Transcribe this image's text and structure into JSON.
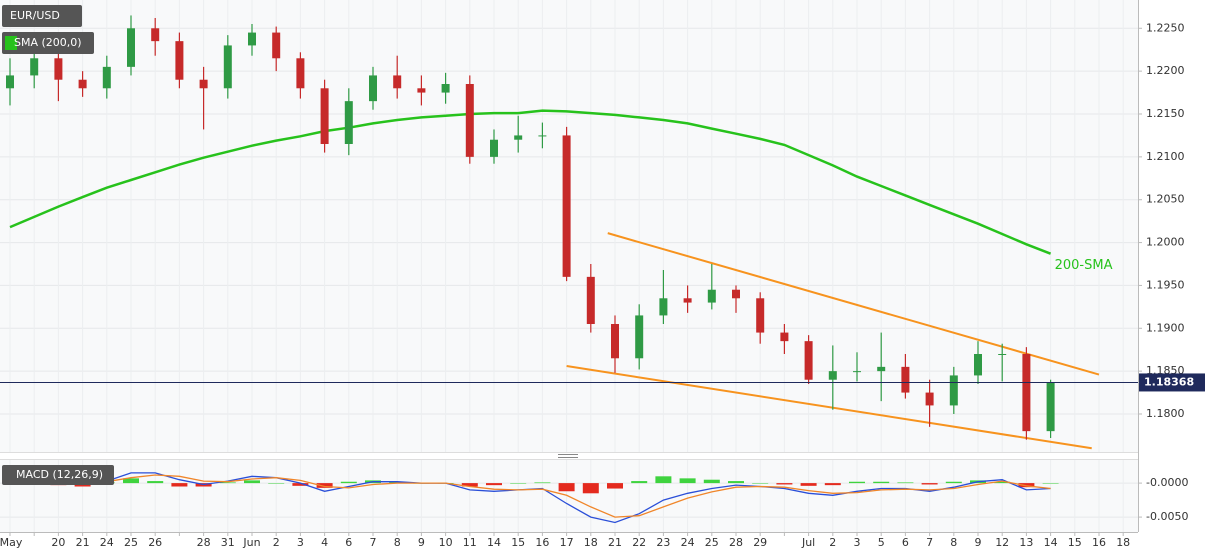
{
  "chart_data": {
    "type": "candlestick",
    "title": "EUR/USD",
    "categories": [
      "May",
      null,
      "20",
      "21",
      "24",
      "25",
      "26",
      null,
      "28",
      "31",
      "Jun",
      "2",
      "3",
      "4",
      "6",
      "7",
      "8",
      "9",
      "10",
      "11",
      "14",
      "15",
      "16",
      "17",
      "18",
      "21",
      "22",
      "23",
      "24",
      "25",
      "28",
      "29",
      null,
      "Jul",
      "2",
      "3",
      "5",
      "6",
      "7",
      "8",
      "9",
      "12",
      "13",
      "14",
      "15",
      "16",
      "18"
    ],
    "open": [
      1.218,
      1.2195,
      1.2215,
      1.219,
      1.218,
      1.2205,
      1.225,
      1.2235,
      1.219,
      1.218,
      1.223,
      1.2245,
      1.2215,
      1.218,
      1.2115,
      1.2165,
      1.2195,
      1.218,
      1.2175,
      1.2185,
      1.21,
      1.212,
      1.2125,
      1.2125,
      1.196,
      1.1905,
      1.1865,
      1.1915,
      1.1935,
      1.193,
      1.1945,
      1.1935,
      1.1895,
      1.1885,
      1.184,
      1.185,
      1.185,
      1.1855,
      1.1825,
      1.181,
      1.1845,
      1.187,
      1.187,
      1.178,
      null,
      null,
      null
    ],
    "high": [
      1.2215,
      1.2235,
      1.2228,
      1.22,
      1.2218,
      1.2265,
      1.2262,
      1.2245,
      1.2205,
      1.2242,
      1.2255,
      1.2252,
      1.2222,
      1.219,
      1.218,
      1.2205,
      1.2218,
      1.2195,
      1.2198,
      1.2195,
      1.2132,
      1.2148,
      1.214,
      1.2135,
      1.1975,
      1.1915,
      1.1928,
      1.1968,
      1.195,
      1.1975,
      1.195,
      1.1942,
      1.1905,
      1.1892,
      1.188,
      1.1872,
      1.1895,
      1.187,
      1.184,
      1.1855,
      1.1885,
      1.1882,
      1.1878,
      1.184,
      null,
      null,
      null
    ],
    "low": [
      1.216,
      1.218,
      1.2165,
      1.217,
      1.2168,
      1.2195,
      1.2218,
      1.218,
      1.2132,
      1.2168,
      1.2218,
      1.22,
      1.2168,
      1.2105,
      1.2102,
      1.2155,
      1.2168,
      1.216,
      1.2162,
      1.2092,
      1.2092,
      1.2105,
      1.211,
      1.1955,
      1.1895,
      1.1848,
      1.1852,
      1.1905,
      1.1918,
      1.1922,
      1.1918,
      1.1882,
      1.187,
      1.1835,
      1.1805,
      1.1838,
      1.1815,
      1.1818,
      1.1785,
      1.18,
      1.1835,
      1.1838,
      1.177,
      1.1772,
      null,
      null,
      null
    ],
    "close": [
      1.2195,
      1.2215,
      1.219,
      1.218,
      1.2205,
      1.225,
      1.2235,
      1.219,
      1.218,
      1.223,
      1.2245,
      1.2215,
      1.218,
      1.2115,
      1.2165,
      1.2195,
      1.218,
      1.2175,
      1.2185,
      1.21,
      1.212,
      1.2125,
      1.2125,
      1.196,
      1.1905,
      1.1865,
      1.1915,
      1.1935,
      1.193,
      1.1945,
      1.1935,
      1.1895,
      1.1885,
      1.184,
      1.185,
      1.185,
      1.1855,
      1.1825,
      1.181,
      1.1845,
      1.187,
      1.187,
      1.178,
      1.18368,
      null,
      null,
      null
    ],
    "up_color": "#2f9a45",
    "down_color": "#c62a2a",
    "ylim": [
      1.1758,
      1.2283
    ],
    "yticks": [
      {
        "value": 1.18,
        "label": "1.1800"
      },
      {
        "value": 1.185,
        "label": "1.1850"
      },
      {
        "value": 1.19,
        "label": "1.1900"
      },
      {
        "value": 1.195,
        "label": "1.1950"
      },
      {
        "value": 1.2,
        "label": "1.2000"
      },
      {
        "value": 1.205,
        "label": "1.2050"
      },
      {
        "value": 1.21,
        "label": "1.2100"
      },
      {
        "value": 1.215,
        "label": "1.2150"
      },
      {
        "value": 1.22,
        "label": "1.2200"
      },
      {
        "value": 1.225,
        "label": "1.2250"
      }
    ],
    "grid": true,
    "last_price": 1.18368,
    "overlays": [
      {
        "name": "SMA (200,0)",
        "annotation": "200-SMA",
        "color": "#27c21c",
        "values": [
          1.2018,
          1.203,
          1.2042,
          1.2053,
          1.2064,
          1.2073,
          1.2082,
          1.2091,
          1.2099,
          1.2106,
          1.2113,
          1.2119,
          1.2124,
          1.213,
          1.2134,
          1.2139,
          1.2143,
          1.2146,
          1.2148,
          1.215,
          1.2151,
          1.2151,
          1.2154,
          1.2153,
          1.2151,
          1.2149,
          1.2146,
          1.2143,
          1.2139,
          1.2133,
          1.2127,
          1.2121,
          1.2114,
          1.2102,
          1.209,
          1.2077,
          1.2066,
          1.2055,
          1.2044,
          1.2033,
          1.2022,
          1.201,
          1.1998,
          1.1987,
          null,
          null,
          null
        ]
      }
    ],
    "trend_lines": [
      {
        "color": "#f7931e",
        "x": [
          24.7,
          45
        ],
        "values": [
          1.2011,
          1.1846
        ]
      },
      {
        "color": "#f7931e",
        "x": [
          23,
          44.7
        ],
        "values": [
          1.1856,
          1.176
        ]
      }
    ],
    "macd": {
      "name": "MACD (12,26,9)",
      "ylim": [
        -0.0069,
        0.0034
      ],
      "yticks": [
        {
          "value": 0,
          "label": "-0.0000"
        },
        {
          "value": -0.005,
          "label": "-0.0050"
        }
      ],
      "macd_line": {
        "color": "#2b4fd8",
        "values": [
          0.001,
          0.0012,
          0.0005,
          -0.0002,
          0.0003,
          0.0015,
          0.0015,
          0.0005,
          -0.0002,
          0.0003,
          0.001,
          0.0008,
          0.0,
          -0.0012,
          -0.0005,
          0.0002,
          0.0002,
          0.0,
          0.0,
          -0.001,
          -0.0012,
          -0.001,
          -0.0008,
          -0.003,
          -0.005,
          -0.0058,
          -0.0045,
          -0.0025,
          -0.0015,
          -0.0008,
          -0.0003,
          -0.0005,
          -0.0008,
          -0.0015,
          -0.0018,
          -0.0012,
          -0.0008,
          -0.0008,
          -0.0012,
          -0.0006,
          0.0002,
          0.0005,
          -0.001,
          -0.0008,
          null,
          null,
          null
        ]
      },
      "signal_line": {
        "color": "#f0862a",
        "values": [
          0.0008,
          0.001,
          0.0008,
          0.0003,
          0.0002,
          0.0008,
          0.0012,
          0.001,
          0.0003,
          0.0002,
          0.0006,
          0.0008,
          0.0004,
          -0.0005,
          -0.0007,
          -0.0002,
          0.0,
          0.0,
          0.0,
          -0.0005,
          -0.0009,
          -0.001,
          -0.0009,
          -0.0018,
          -0.0035,
          -0.005,
          -0.0048,
          -0.0035,
          -0.0022,
          -0.0013,
          -0.0006,
          -0.0005,
          -0.0006,
          -0.0011,
          -0.0015,
          -0.0014,
          -0.001,
          -0.0009,
          -0.001,
          -0.0008,
          -0.0002,
          0.0003,
          -0.0004,
          -0.0008,
          null,
          null,
          null
        ]
      },
      "histogram": {
        "positive_color": "#3fd33f",
        "negative_color": "#e42a1e",
        "values": [
          0.0002,
          0.0002,
          -0.0003,
          -0.0005,
          0.0001,
          0.0007,
          0.0003,
          -0.0005,
          -0.0005,
          0.0001,
          0.0004,
          0.0,
          -0.0004,
          -0.0007,
          0.0002,
          0.0004,
          0.0002,
          0.0,
          0.0,
          -0.0005,
          -0.0003,
          0.0,
          0.0001,
          -0.0012,
          -0.0015,
          -0.0008,
          0.0003,
          0.001,
          0.0007,
          0.0005,
          0.0003,
          0.0,
          -0.0002,
          -0.0004,
          -0.0003,
          0.0002,
          0.0002,
          0.0001,
          -0.0002,
          0.0002,
          0.0004,
          0.0002,
          -0.0006,
          0.0,
          null,
          null,
          null
        ]
      }
    }
  }
}
